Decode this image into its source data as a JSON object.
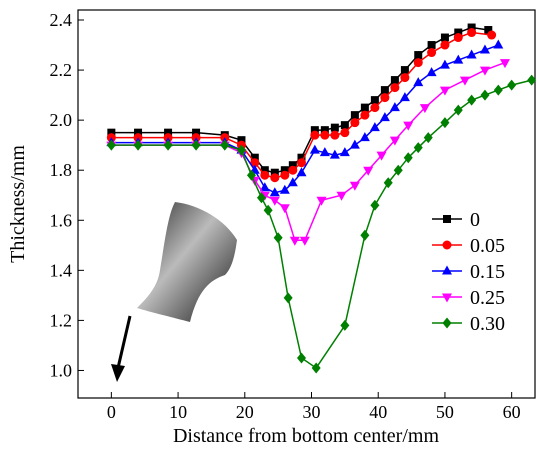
{
  "chart_data": {
    "type": "line",
    "x_label": "Distance from bottom center/mm",
    "y_label": "Thickness/mm",
    "xlim": [
      -5,
      63.5
    ],
    "ylim": [
      0.89,
      2.44
    ],
    "xticks": [
      0,
      10,
      20,
      30,
      40,
      50,
      60
    ],
    "yticks": [
      {
        "value": 1.0,
        "label": "1.0"
      },
      {
        "value": 1.2,
        "label": "1.2"
      },
      {
        "value": 1.4,
        "label": "1.4"
      },
      {
        "value": 1.6,
        "label": "1.6"
      },
      {
        "value": 1.8,
        "label": "1.8"
      },
      {
        "value": 2.0,
        "label": "2.0"
      },
      {
        "value": 2.2,
        "label": "2.2"
      },
      {
        "value": 2.4,
        "label": "2.4"
      }
    ],
    "series": [
      {
        "name": "0",
        "color": "#000000",
        "marker": "square",
        "x": [
          0,
          4,
          8.5,
          12.7,
          17,
          19.5,
          21.5,
          23,
          24.5,
          26,
          27.2,
          28.5,
          30.5,
          32,
          33.5,
          35,
          36.5,
          38,
          39.5,
          41,
          42.5,
          44,
          46,
          48,
          50,
          52,
          54,
          56.5
        ],
        "values": [
          1.95,
          1.95,
          1.95,
          1.95,
          1.94,
          1.92,
          1.85,
          1.8,
          1.79,
          1.8,
          1.82,
          1.85,
          1.96,
          1.96,
          1.97,
          1.98,
          2.02,
          2.05,
          2.08,
          2.12,
          2.16,
          2.2,
          2.26,
          2.3,
          2.33,
          2.35,
          2.37,
          2.36
        ]
      },
      {
        "name": "0.05",
        "color": "#ff0000",
        "marker": "circle",
        "x": [
          0,
          4,
          8.5,
          12.7,
          17,
          19.5,
          21.5,
          23,
          24.5,
          26,
          27.2,
          28.5,
          30.5,
          32,
          33.5,
          35,
          36.5,
          38,
          39.5,
          41,
          42.5,
          44,
          46,
          48,
          50,
          52,
          54,
          57
        ],
        "values": [
          1.93,
          1.93,
          1.93,
          1.93,
          1.93,
          1.9,
          1.83,
          1.78,
          1.77,
          1.78,
          1.8,
          1.83,
          1.94,
          1.94,
          1.94,
          1.95,
          1.99,
          2.02,
          2.05,
          2.09,
          2.13,
          2.17,
          2.23,
          2.27,
          2.3,
          2.33,
          2.35,
          2.34
        ]
      },
      {
        "name": "0.15",
        "color": "#0000ff",
        "marker": "triangle-up",
        "x": [
          0,
          4,
          8.5,
          12.7,
          17,
          19.5,
          21.5,
          23,
          24.5,
          26,
          27.2,
          28.5,
          30.5,
          32,
          33.5,
          35,
          36.5,
          38,
          39.5,
          41,
          42.5,
          44,
          46,
          48,
          50,
          52,
          54,
          56,
          58
        ],
        "values": [
          1.91,
          1.91,
          1.91,
          1.91,
          1.91,
          1.88,
          1.8,
          1.73,
          1.71,
          1.72,
          1.75,
          1.79,
          1.88,
          1.87,
          1.86,
          1.87,
          1.9,
          1.93,
          1.97,
          2.01,
          2.05,
          2.09,
          2.15,
          2.19,
          2.22,
          2.24,
          2.26,
          2.28,
          2.3
        ]
      },
      {
        "name": "0.25",
        "color": "#ff00ff",
        "marker": "triangle-down",
        "x": [
          0,
          4,
          8.5,
          12.7,
          17,
          19.5,
          21.5,
          23,
          24.5,
          26,
          27.5,
          29,
          31.5,
          34.5,
          36.5,
          38.5,
          40.5,
          42.5,
          44.5,
          47,
          50,
          53,
          56,
          59
        ],
        "values": [
          1.9,
          1.9,
          1.9,
          1.9,
          1.9,
          1.87,
          1.76,
          1.7,
          1.68,
          1.65,
          1.52,
          1.52,
          1.68,
          1.7,
          1.74,
          1.8,
          1.86,
          1.92,
          1.98,
          2.05,
          2.12,
          2.16,
          2.2,
          2.23
        ]
      },
      {
        "name": "0.30",
        "color": "#008000",
        "marker": "diamond",
        "x": [
          0,
          4,
          8.5,
          12.7,
          17,
          19.5,
          21,
          22.5,
          23.5,
          25,
          26.5,
          28.5,
          30.7,
          35,
          38,
          39.5,
          41.5,
          43,
          44.5,
          46,
          47.5,
          50,
          52,
          54,
          56,
          58,
          60,
          63
        ],
        "values": [
          1.9,
          1.9,
          1.9,
          1.9,
          1.9,
          1.88,
          1.78,
          1.69,
          1.64,
          1.53,
          1.29,
          1.05,
          1.01,
          1.18,
          1.54,
          1.66,
          1.75,
          1.8,
          1.85,
          1.89,
          1.93,
          1.99,
          2.04,
          2.08,
          2.1,
          2.12,
          2.14,
          2.16
        ]
      }
    ]
  }
}
